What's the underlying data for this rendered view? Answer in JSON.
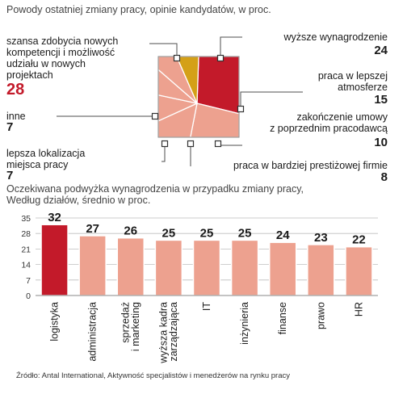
{
  "chart_data": [
    {
      "type": "pie",
      "title": "Powody ostatniej zmiany pracy, opinie kandydatów, w proc.",
      "slices": [
        {
          "label": "szansa zdobycia nowych kompetencji i możliwość udziału w nowych projektach",
          "lines": [
            "szansa zdobycia nowych",
            "kompetencji i możliwość",
            "udziału w nowych",
            "projektach"
          ],
          "value": 28,
          "value_label": "28",
          "color": "#c31a2a"
        },
        {
          "label": "wyższe wynagrodzenie",
          "lines": [
            "wyższe wynagrodzenie"
          ],
          "value": 24,
          "value_label": "24",
          "color": "#eda18f"
        },
        {
          "label": "praca w lepszej atmosferze",
          "lines": [
            "praca  w lepszej",
            "atmosferze"
          ],
          "value": 15,
          "value_label": "15",
          "color": "#eda18f"
        },
        {
          "label": "zakończenie umowy z poprzednim pracodawcą",
          "lines": [
            "zakończenie umowy",
            "z poprzednim pracodawcą"
          ],
          "value": 10,
          "value_label": "10",
          "color": "#eda18f"
        },
        {
          "label": "praca w bardziej prestiżowej firmie",
          "lines": [
            "praca w bardziej prestiżowej firmie"
          ],
          "value": 8,
          "value_label": "8",
          "color": "#eda18f"
        },
        {
          "label": "lepsza lokalizacja miejsca pracy",
          "lines": [
            "lepsza lokalizacja",
            "miejsca pracy"
          ],
          "value": 7,
          "value_label": "7",
          "color": "#eda18f"
        },
        {
          "label": "inne",
          "lines": [
            "inne"
          ],
          "value": 7,
          "value_label": "7",
          "color": "#d4a017"
        }
      ]
    },
    {
      "type": "bar",
      "title_lines": [
        "Oczekiwana podwyżka wynagrodzenia w przypadku zmiany pracy,",
        "Według działów, średnio w proc."
      ],
      "categories": [
        {
          "lines": [
            "logistyka"
          ]
        },
        {
          "lines": [
            "administracja"
          ]
        },
        {
          "lines": [
            "sprzedaż",
            "i marketing"
          ]
        },
        {
          "lines": [
            "wyższa kadra",
            "zarządzająca"
          ]
        },
        {
          "lines": [
            "IT"
          ]
        },
        {
          "lines": [
            "inżynieria"
          ]
        },
        {
          "lines": [
            "finanse"
          ]
        },
        {
          "lines": [
            "prawo"
          ]
        },
        {
          "lines": [
            "HR"
          ]
        }
      ],
      "values": [
        32,
        27,
        26,
        25,
        25,
        25,
        24,
        23,
        22
      ],
      "value_labels": [
        "32",
        "27",
        "26",
        "25",
        "25",
        "25",
        "24",
        "23",
        "22"
      ],
      "ylim": [
        0,
        35
      ],
      "yticks": [
        0,
        7,
        14,
        21,
        28,
        35
      ],
      "ytick_labels": [
        "0",
        "7",
        "14",
        "21",
        "28",
        "35"
      ],
      "grid": true,
      "colors": {
        "highlight": "#c31a2a",
        "bar": "#eda18f",
        "grid": "#bdbdbd"
      }
    }
  ],
  "source": "Źródło: Antal International, Aktywność specjalistów i menedżerów na rynku pracy",
  "colors": {
    "accent": "#c31a2a",
    "salmon": "#eda18f",
    "gold": "#d4a017"
  }
}
